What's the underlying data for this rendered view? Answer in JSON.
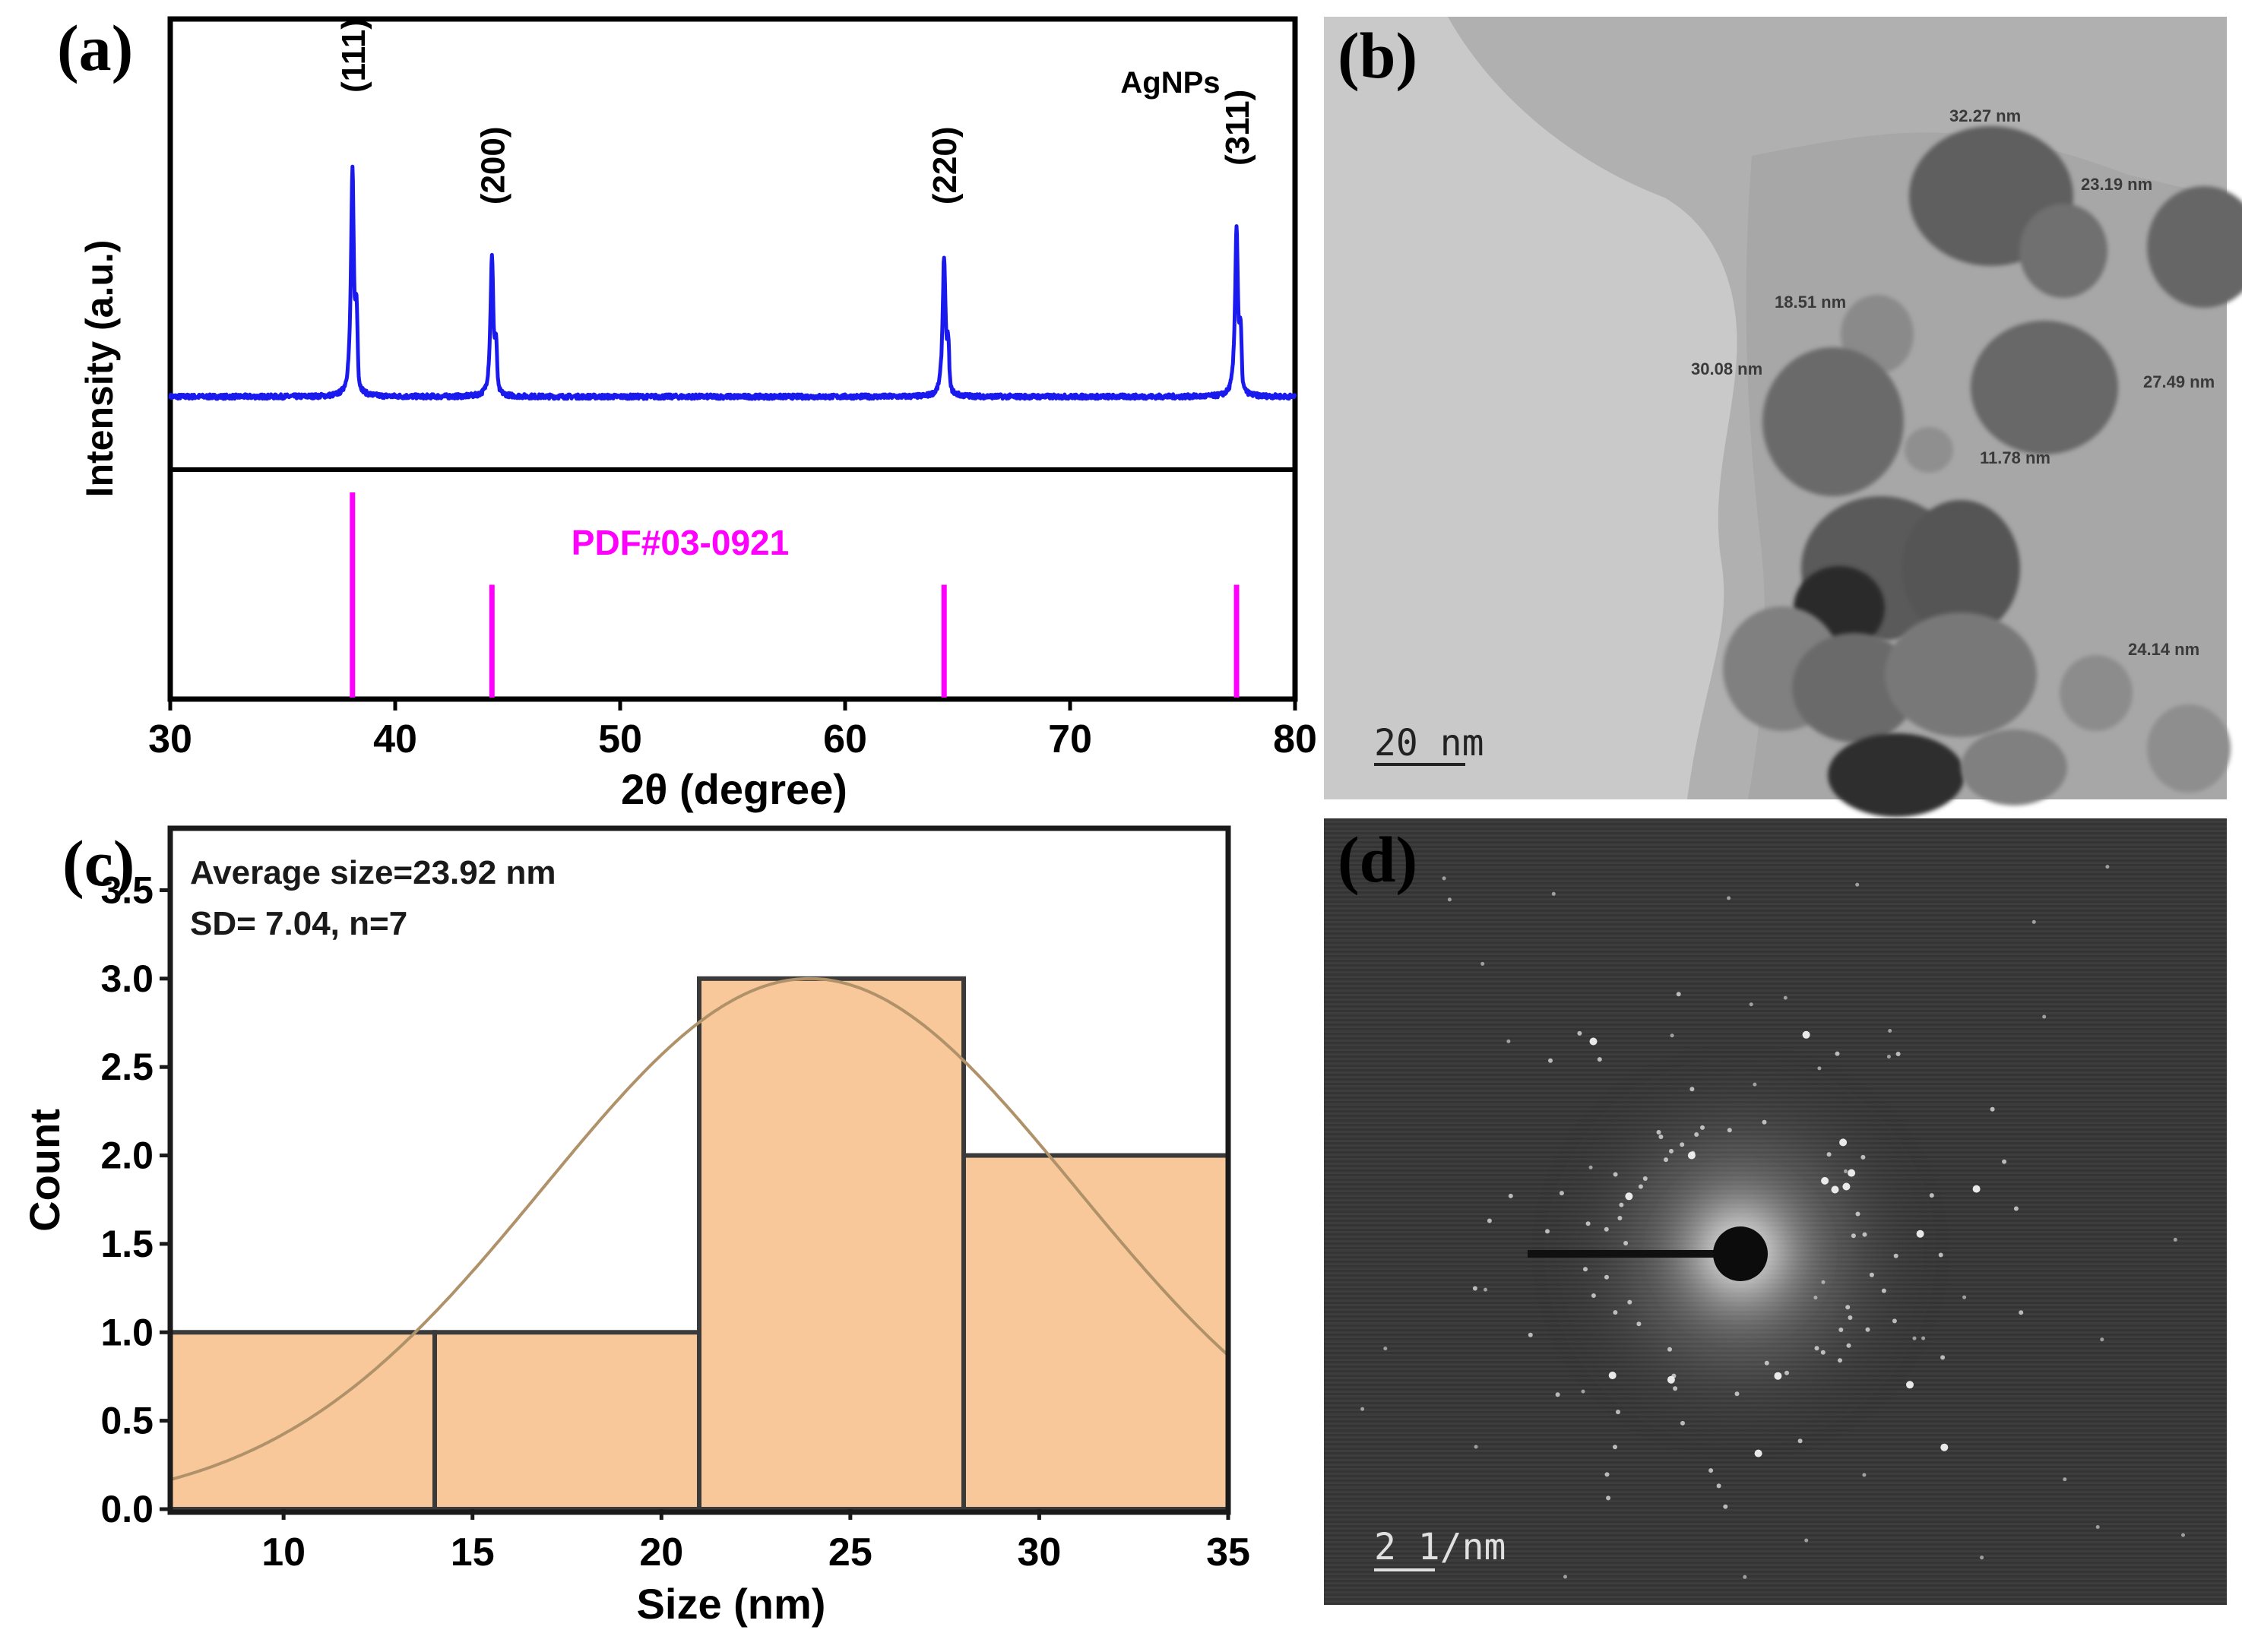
{
  "panels": {
    "a": {
      "label": "(a)"
    },
    "b": {
      "label": "(b)"
    },
    "c": {
      "label": "(c)"
    },
    "d": {
      "label": "(d)"
    }
  },
  "colors": {
    "xrd_line": "#1a1aee",
    "reference_stick": "#ff00ff",
    "hist_fill": "#f9c89a",
    "hist_edge": "#3a3a3a",
    "fit_curve": "#b0926a"
  },
  "chart_data": [
    {
      "id": "xrd",
      "type": "line",
      "title": "AgNPs",
      "xlabel": "2θ (degree)",
      "ylabel": "Intensity (a.u.)",
      "xlim": [
        30,
        80
      ],
      "xticks": [
        30,
        40,
        50,
        60,
        70,
        80
      ],
      "baseline": 0.06,
      "peaks": [
        {
          "position": 38.1,
          "height": 0.6,
          "hkl": "(111)"
        },
        {
          "position": 44.3,
          "height": 0.37,
          "hkl": "(200)"
        },
        {
          "position": 64.4,
          "height": 0.37,
          "hkl": "(220)"
        },
        {
          "position": 77.4,
          "height": 0.45,
          "hkl": "(311)"
        }
      ],
      "reference": {
        "name": "PDF#03-0921",
        "sticks": [
          {
            "position": 38.1,
            "intensity": 1.0
          },
          {
            "position": 44.3,
            "intensity": 0.55
          },
          {
            "position": 64.4,
            "intensity": 0.55
          },
          {
            "position": 77.4,
            "intensity": 0.55
          }
        ]
      }
    },
    {
      "id": "histogram",
      "type": "bar",
      "xlabel": "Size (nm)",
      "ylabel": "Count",
      "xlim": [
        7,
        35
      ],
      "ylim": [
        0,
        3.85
      ],
      "xticks": [
        10,
        15,
        20,
        25,
        30,
        35
      ],
      "yticks": [
        "0.0",
        "0.5",
        "1.0",
        "1.5",
        "2.0",
        "2.5",
        "3.0",
        "3.5"
      ],
      "bins": [
        {
          "from": 7,
          "to": 14,
          "count": 1
        },
        {
          "from": 14,
          "to": 21,
          "count": 1
        },
        {
          "from": 21,
          "to": 28,
          "count": 3
        },
        {
          "from": 28,
          "to": 35,
          "count": 2
        }
      ],
      "fit": {
        "mean": 23.92,
        "sd": 7.04,
        "peak": 3.0
      },
      "annotations": [
        "Average size=23.92 nm",
        "SD= 7.04, n=7"
      ]
    }
  ],
  "tem": {
    "scale_bar": "20 nm",
    "particles": [
      {
        "label": "32.27 nm"
      },
      {
        "label": "23.19 nm"
      },
      {
        "label": "18.51 nm"
      },
      {
        "label": "30.08 nm"
      },
      {
        "label": "27.49 nm"
      },
      {
        "label": "11.78 nm"
      },
      {
        "label": "24.14 nm"
      }
    ]
  },
  "saed": {
    "scale_bar": "2 1/nm"
  }
}
